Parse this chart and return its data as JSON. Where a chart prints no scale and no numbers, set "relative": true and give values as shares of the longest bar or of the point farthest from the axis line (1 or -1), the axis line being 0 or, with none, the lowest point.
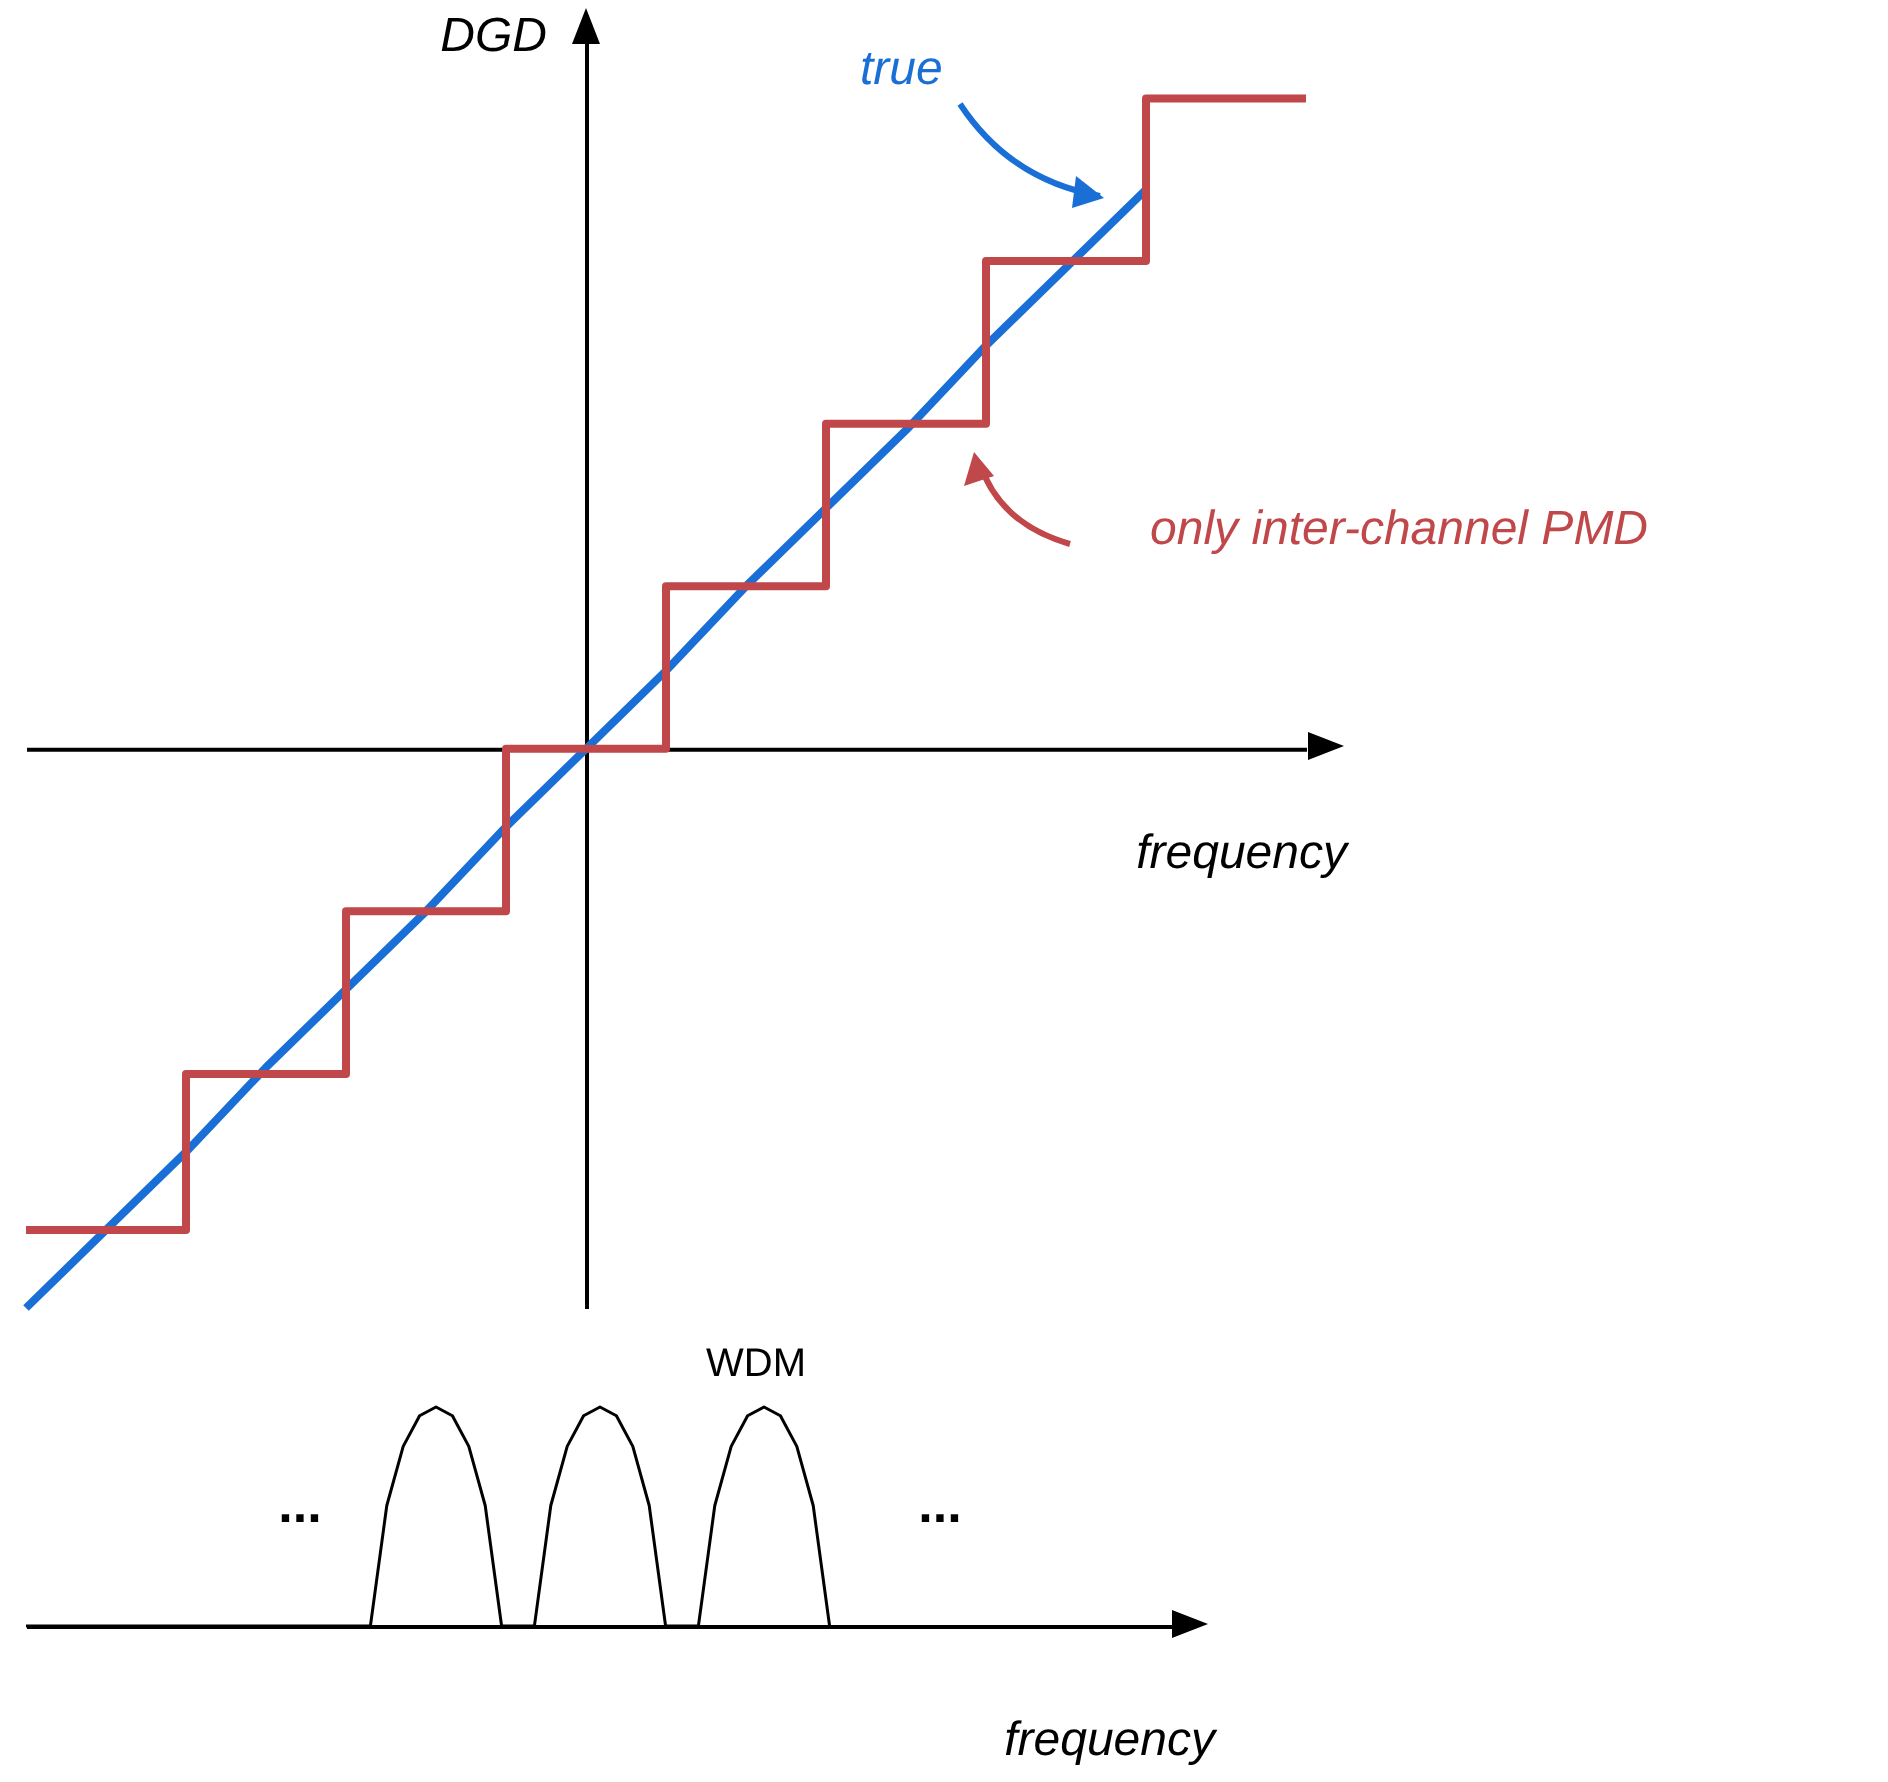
{
  "chart_data": [
    {
      "type": "line",
      "xlabel": "frequency",
      "ylabel": "DGD",
      "relative": true,
      "categories": [
        null,
        null,
        null,
        null,
        null,
        null,
        null,
        null,
        null,
        null,
        null,
        null,
        null,
        null,
        null,
        null,
        null
      ],
      "series": [
        {
          "name": "true",
          "type": "line",
          "color": "#1a6fd6",
          "values": [
            -0.86,
            -0.74,
            -0.62,
            -0.49,
            -0.37,
            -0.25,
            -0.12,
            0,
            0.12,
            0.25,
            0.37,
            0.49,
            0.62,
            0.74,
            0.86,
            null,
            null
          ]
        },
        {
          "name": "only inter-channel PMD",
          "type": "step",
          "color": "#c0474a",
          "values": [
            -0.74,
            -0.74,
            -0.5,
            -0.5,
            -0.25,
            -0.25,
            0,
            0,
            0.25,
            0.25,
            0.5,
            0.5,
            0.75,
            0.75,
            1,
            1,
            1
          ]
        }
      ]
    },
    {
      "type": "line",
      "title": "WDM",
      "xlabel": "frequency",
      "relative": true,
      "annotations": [
        "...",
        "..."
      ],
      "categories": [
        null,
        null,
        null,
        null,
        null,
        null,
        null,
        null,
        null,
        null,
        null,
        null,
        null,
        null,
        null,
        null,
        null,
        null,
        null,
        null,
        null,
        null,
        null,
        null,
        null,
        null,
        null,
        null,
        null,
        null,
        null,
        null,
        null,
        null,
        null,
        null,
        null,
        null,
        null,
        null,
        null,
        null,
        null,
        null,
        null,
        null,
        null,
        null,
        null,
        null,
        null,
        null,
        null,
        null,
        null,
        null,
        null,
        null,
        null,
        null,
        null,
        null,
        null,
        null,
        null,
        null,
        null,
        null,
        null,
        null,
        null
      ],
      "series": [
        {
          "color": "#000000",
          "values": [
            0,
            0,
            0,
            0,
            0,
            0,
            0,
            0,
            0,
            0,
            0,
            0,
            0,
            0,
            0,
            0,
            0,
            0,
            0,
            0,
            0,
            0,
            0.55,
            0.82,
            0.96,
            1,
            0.96,
            0.82,
            0.55,
            0,
            0,
            0,
            0.55,
            0.82,
            0.96,
            1,
            0.96,
            0.82,
            0.55,
            0,
            0,
            0,
            0.55,
            0.82,
            0.96,
            1,
            0.96,
            0.82,
            0.55,
            0,
            null,
            null,
            null,
            null,
            null,
            null,
            null,
            null,
            null,
            null,
            null,
            null,
            null,
            null,
            null,
            null,
            null,
            null,
            null,
            null,
            null
          ]
        }
      ]
    }
  ]
}
